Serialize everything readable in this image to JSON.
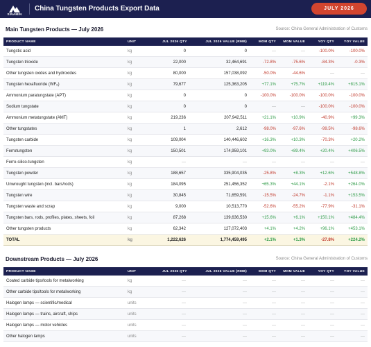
{
  "header": {
    "logo": "SINAMIN",
    "title": "China Tungsten Products Export Data",
    "badge": "JULY 2026"
  },
  "sections": [
    {
      "title": "Main Tungsten Products — July 2026",
      "source": "Source: China General Administration of Customs",
      "columns": [
        "PRODUCT NAME",
        "UNIT",
        "JUL 2026 QTY",
        "JUL 2026 VALUE (RMB)",
        "MOM QTY",
        "MOM VALUE",
        "YOY QTY",
        "YOY VALUE"
      ],
      "rows": [
        [
          "Tungstic acid",
          "kg",
          "0",
          "0",
          "—",
          "—",
          "-100.0%",
          "-100.0%"
        ],
        [
          "Tungsten trioxide",
          "kg",
          "22,000",
          "32,464,691",
          "-72.8%",
          "-75.6%",
          "-84.3%",
          "-0.3%"
        ],
        [
          "Other tungsten oxides and hydroxides",
          "kg",
          "80,000",
          "157,038,092",
          "-50.0%",
          "-44.6%",
          "—",
          "—"
        ],
        [
          "Tungsten hexafluoride (WF₆)",
          "kg",
          "79,677",
          "125,363,205",
          "+77.1%",
          "+75.7%",
          "+119.4%",
          "+815.1%"
        ],
        [
          "Ammonium paratungstate (APT)",
          "kg",
          "0",
          "0",
          "-100.0%",
          "-100.0%",
          "-100.0%",
          "-100.0%"
        ],
        [
          "Sodium tungstate",
          "kg",
          "0",
          "0",
          "—",
          "—",
          "-100.0%",
          "-100.0%"
        ],
        [
          "Ammonium metatungstate (AMT)",
          "kg",
          "219,236",
          "207,942,511",
          "+21.1%",
          "+10.9%",
          "-40.9%",
          "+99.3%"
        ],
        [
          "Other tungstates",
          "kg",
          "1",
          "2,612",
          "-98.0%",
          "-97.6%",
          "-99.5%",
          "-98.6%"
        ],
        [
          "Tungsten carbide",
          "kg",
          "109,004",
          "140,446,602",
          "+16.3%",
          "+10.3%",
          "-70.3%",
          "+20.2%"
        ],
        [
          "Ferrotungsten",
          "kg",
          "150,501",
          "174,959,101",
          "+93.0%",
          "+89.4%",
          "+20.4%",
          "+406.5%"
        ],
        [
          "Ferro-silico-tungsten",
          "kg",
          "—",
          "—",
          "—",
          "—",
          "—",
          "—"
        ],
        [
          "Tungsten powder",
          "kg",
          "188,657",
          "335,904,035",
          "-25.8%",
          "+8.3%",
          "+12.6%",
          "+548.8%"
        ],
        [
          "Unwrought tungsten (incl. bars/rods)",
          "kg",
          "184,095",
          "251,456,352",
          "+65.3%",
          "+44.1%",
          "-2.1%",
          "+264.0%"
        ],
        [
          "Tungsten wire",
          "kg",
          "30,845",
          "71,659,591",
          "-15.5%",
          "-24.7%",
          "-1.1%",
          "+153.5%"
        ],
        [
          "Tungsten waste and scrap",
          "kg",
          "9,000",
          "10,513,770",
          "-52.6%",
          "-55.2%",
          "-77.9%",
          "-31.1%"
        ],
        [
          "Tungsten bars, rods, profiles, plates, sheets, foil",
          "kg",
          "87,268",
          "139,636,530",
          "+15.6%",
          "+6.1%",
          "+150.1%",
          "+484.4%"
        ],
        [
          "Other tungsten products",
          "kg",
          "62,342",
          "127,072,403",
          "+4.1%",
          "+4.2%",
          "+96.1%",
          "+453.1%"
        ]
      ],
      "total": [
        "TOTAL",
        "kg",
        "1,222,626",
        "1,774,459,495",
        "+2.1%",
        "+1.3%",
        "-27.8%",
        "+224.2%"
      ]
    },
    {
      "title": "Downstream Products — July 2026",
      "source": "Source: China General Administration of Customs",
      "columns": [
        "PRODUCT NAME",
        "UNIT",
        "JUL 2026 QTY",
        "JUL 2026 VALUE (RMB)",
        "MOM QTY",
        "MOM VALUE",
        "YOY QTY",
        "YOY VALUE"
      ],
      "rows": [
        [
          "Coated carbide tips/tools for metalworking",
          "kg",
          "—",
          "—",
          "—",
          "—",
          "—",
          "—"
        ],
        [
          "Other carbide tips/tools for metalworking",
          "kg",
          "—",
          "—",
          "—",
          "—",
          "—",
          "—"
        ],
        [
          "Halogen lamps — scientific/medical",
          "units",
          "—",
          "—",
          "—",
          "—",
          "—",
          "—"
        ],
        [
          "Halogen lamps — trains, aircraft, ships",
          "units",
          "—",
          "—",
          "—",
          "—",
          "—",
          "—"
        ],
        [
          "Halogen lamps — motor vehicles",
          "units",
          "—",
          "—",
          "—",
          "—",
          "—",
          "—"
        ],
        [
          "Other halogen lamps",
          "units",
          "—",
          "—",
          "—",
          "—",
          "—",
          "—"
        ]
      ]
    }
  ]
}
